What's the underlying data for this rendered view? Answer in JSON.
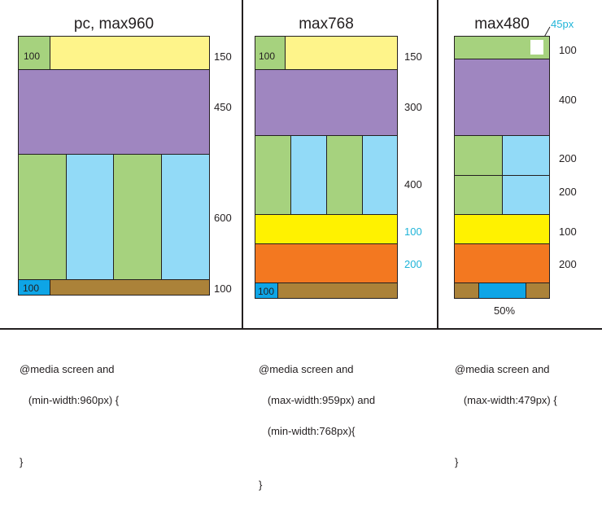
{
  "colors": {
    "green": "#a6d27e",
    "yellow_light": "#fef48a",
    "purple": "#9f86c0",
    "light_blue": "#92daf7",
    "brown": "#ab8239",
    "blue": "#0ea5e6",
    "yellow": "#fff200",
    "orange": "#f37820",
    "cyan_text": "#1fb4d8",
    "white": "#ffffff"
  },
  "panels": {
    "pc": {
      "title": "pc, max960",
      "header_inner": "100",
      "footer_inner": "100",
      "labels": {
        "header": "150",
        "main": "450",
        "grid": "600",
        "footer": "100"
      }
    },
    "tablet": {
      "title": "max768",
      "header_inner": "100",
      "footer_inner": "100",
      "labels": {
        "header": "150",
        "main": "300",
        "grid": "400",
        "yellow": "100",
        "orange": "200"
      }
    },
    "mobile": {
      "title": "max480",
      "box_label": "45px",
      "labels": {
        "header": "100",
        "main": "400",
        "grid1": "200",
        "grid2": "200",
        "yellow": "100",
        "orange": "200"
      },
      "footer_percent": "50%"
    }
  },
  "code": {
    "pc": [
      "@media screen and",
      "   (min-width:960px) {",
      "",
      "}"
    ],
    "tablet": [
      "@media screen and",
      "   (max-width:959px) and",
      "   (min-width:768px){",
      "",
      "}"
    ],
    "mobile": [
      "@media screen and",
      "   (max-width:479px) {",
      "",
      "}"
    ]
  }
}
